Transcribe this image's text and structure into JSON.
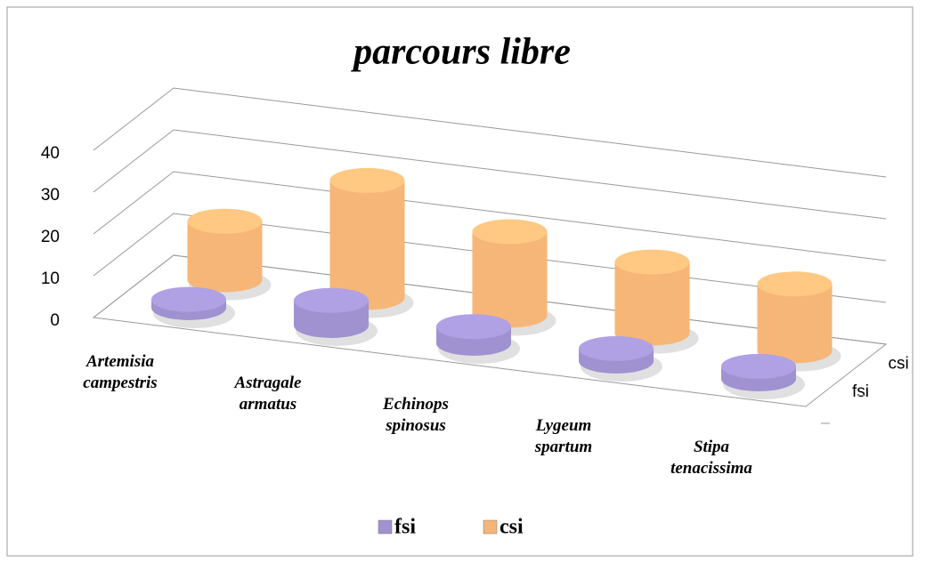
{
  "chart_data": {
    "type": "bar3d",
    "title": "parcours libre",
    "categories": [
      "Artemisia campestris",
      "Astragale armatus",
      "Echinops spinosus",
      "Lygeum spartum",
      "Stipa tenacissima"
    ],
    "series": [
      {
        "name": "fsi",
        "color": "#a092d0",
        "values": [
          2,
          6,
          4,
          3,
          3
        ]
      },
      {
        "name": "csi",
        "color": "#f6b677",
        "values": [
          14,
          28,
          20,
          17,
          16
        ]
      }
    ],
    "ylim": [
      0,
      40
    ],
    "yticks": [
      0,
      10,
      20,
      30,
      40
    ],
    "grid": true,
    "legend": "bottom"
  }
}
